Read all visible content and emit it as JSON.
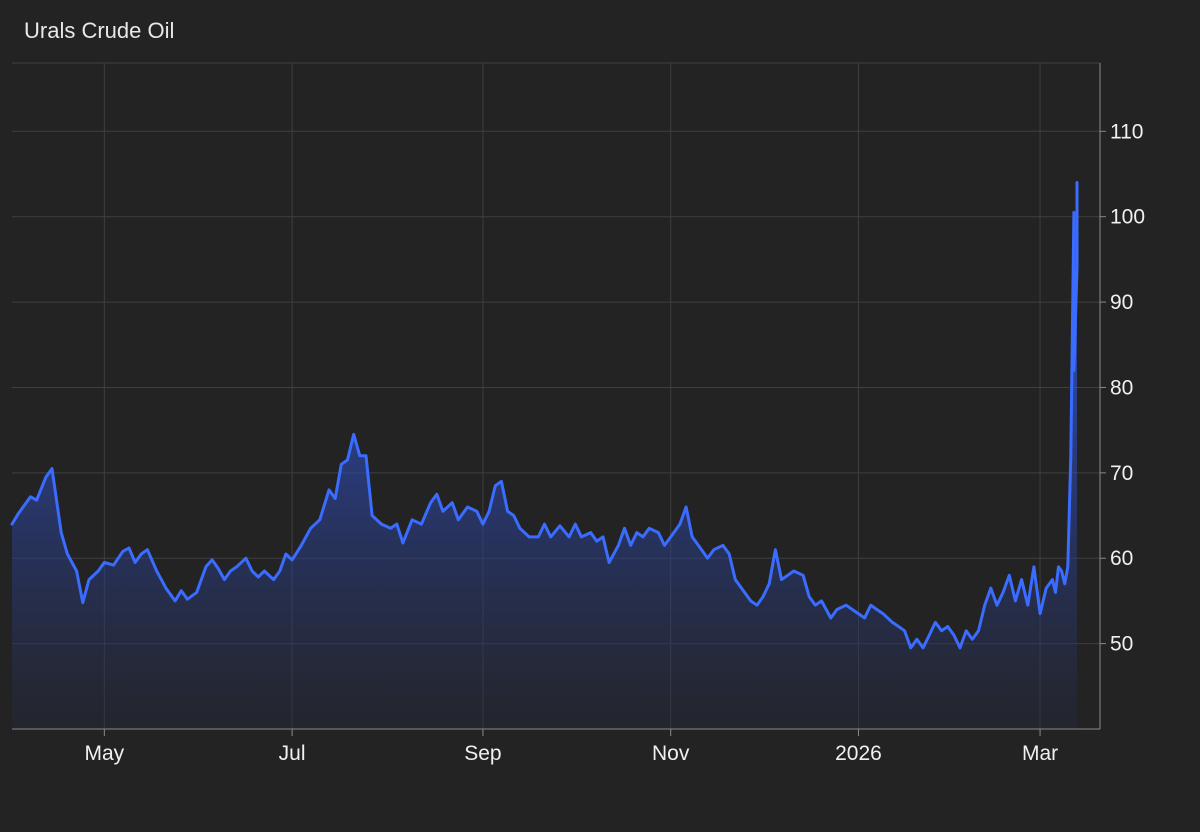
{
  "title": "Urals Crude Oil",
  "chart_data": {
    "type": "area",
    "title": "Urals Crude Oil",
    "xlabel": "",
    "ylabel": "",
    "x_range": [
      "2025-04-01",
      "2026-03-13"
    ],
    "ylim": [
      40,
      118
    ],
    "y_ticks": [
      50,
      60,
      70,
      80,
      90,
      100,
      110
    ],
    "x_ticks": [
      {
        "label": "May",
        "date": "2025-05-01"
      },
      {
        "label": "Jul",
        "date": "2025-07-01"
      },
      {
        "label": "Sep",
        "date": "2025-09-01"
      },
      {
        "label": "Nov",
        "date": "2025-11-01"
      },
      {
        "label": "2026",
        "date": "2026-01-01"
      },
      {
        "label": "Mar",
        "date": "2026-03-01"
      }
    ],
    "y_axis_position": "right",
    "grid": true,
    "color": "#3a6cff",
    "series": [
      {
        "points": [
          [
            "2025-04-01",
            64.0
          ],
          [
            "2025-04-03",
            65.2
          ],
          [
            "2025-04-07",
            67.2
          ],
          [
            "2025-04-09",
            66.8
          ],
          [
            "2025-04-12",
            69.5
          ],
          [
            "2025-04-14",
            70.5
          ],
          [
            "2025-04-17",
            63.0
          ],
          [
            "2025-04-19",
            60.5
          ],
          [
            "2025-04-22",
            58.5
          ],
          [
            "2025-04-24",
            54.8
          ],
          [
            "2025-04-26",
            57.5
          ],
          [
            "2025-04-29",
            58.5
          ],
          [
            "2025-05-01",
            59.5
          ],
          [
            "2025-05-04",
            59.2
          ],
          [
            "2025-05-07",
            60.8
          ],
          [
            "2025-05-09",
            61.2
          ],
          [
            "2025-05-11",
            59.5
          ],
          [
            "2025-05-13",
            60.5
          ],
          [
            "2025-05-15",
            61.0
          ],
          [
            "2025-05-18",
            58.5
          ],
          [
            "2025-05-21",
            56.5
          ],
          [
            "2025-05-24",
            55.0
          ],
          [
            "2025-05-26",
            56.2
          ],
          [
            "2025-05-28",
            55.2
          ],
          [
            "2025-05-31",
            56.0
          ],
          [
            "2025-06-03",
            59.0
          ],
          [
            "2025-06-05",
            59.8
          ],
          [
            "2025-06-07",
            58.8
          ],
          [
            "2025-06-09",
            57.5
          ],
          [
            "2025-06-11",
            58.5
          ],
          [
            "2025-06-13",
            59.0
          ],
          [
            "2025-06-16",
            60.0
          ],
          [
            "2025-06-18",
            58.5
          ],
          [
            "2025-06-20",
            57.8
          ],
          [
            "2025-06-22",
            58.5
          ],
          [
            "2025-06-25",
            57.5
          ],
          [
            "2025-06-27",
            58.5
          ],
          [
            "2025-06-29",
            60.5
          ],
          [
            "2025-07-01",
            59.8
          ],
          [
            "2025-07-04",
            61.5
          ],
          [
            "2025-07-07",
            63.5
          ],
          [
            "2025-07-10",
            64.5
          ],
          [
            "2025-07-13",
            68.0
          ],
          [
            "2025-07-15",
            67.0
          ],
          [
            "2025-07-17",
            71.0
          ],
          [
            "2025-07-19",
            71.5
          ],
          [
            "2025-07-21",
            74.5
          ],
          [
            "2025-07-23",
            72.0
          ],
          [
            "2025-07-25",
            72.0
          ],
          [
            "2025-07-27",
            65.0
          ],
          [
            "2025-07-30",
            64.0
          ],
          [
            "2025-08-02",
            63.5
          ],
          [
            "2025-08-04",
            64.0
          ],
          [
            "2025-08-06",
            61.8
          ],
          [
            "2025-08-09",
            64.5
          ],
          [
            "2025-08-12",
            64.0
          ],
          [
            "2025-08-15",
            66.5
          ],
          [
            "2025-08-17",
            67.5
          ],
          [
            "2025-08-19",
            65.5
          ],
          [
            "2025-08-22",
            66.5
          ],
          [
            "2025-08-24",
            64.5
          ],
          [
            "2025-08-27",
            66.0
          ],
          [
            "2025-08-30",
            65.5
          ],
          [
            "2025-09-01",
            64.0
          ],
          [
            "2025-09-03",
            65.5
          ],
          [
            "2025-09-05",
            68.5
          ],
          [
            "2025-09-07",
            69.0
          ],
          [
            "2025-09-09",
            65.5
          ],
          [
            "2025-09-11",
            65.0
          ],
          [
            "2025-09-13",
            63.5
          ],
          [
            "2025-09-16",
            62.5
          ],
          [
            "2025-09-19",
            62.5
          ],
          [
            "2025-09-21",
            64.0
          ],
          [
            "2025-09-23",
            62.5
          ],
          [
            "2025-09-26",
            63.8
          ],
          [
            "2025-09-29",
            62.5
          ],
          [
            "2025-10-01",
            64.0
          ],
          [
            "2025-10-03",
            62.5
          ],
          [
            "2025-10-06",
            63.0
          ],
          [
            "2025-10-08",
            62.0
          ],
          [
            "2025-10-10",
            62.5
          ],
          [
            "2025-10-12",
            59.5
          ],
          [
            "2025-10-15",
            61.5
          ],
          [
            "2025-10-17",
            63.5
          ],
          [
            "2025-10-19",
            61.5
          ],
          [
            "2025-10-21",
            63.0
          ],
          [
            "2025-10-23",
            62.5
          ],
          [
            "2025-10-25",
            63.5
          ],
          [
            "2025-10-28",
            63.0
          ],
          [
            "2025-10-30",
            61.5
          ],
          [
            "2025-11-02",
            63.0
          ],
          [
            "2025-11-04",
            64.0
          ],
          [
            "2025-11-06",
            66.0
          ],
          [
            "2025-11-08",
            62.5
          ],
          [
            "2025-11-10",
            61.5
          ],
          [
            "2025-11-13",
            60.0
          ],
          [
            "2025-11-15",
            61.0
          ],
          [
            "2025-11-18",
            61.5
          ],
          [
            "2025-11-20",
            60.5
          ],
          [
            "2025-11-22",
            57.5
          ],
          [
            "2025-11-24",
            56.5
          ],
          [
            "2025-11-27",
            55.0
          ],
          [
            "2025-11-29",
            54.5
          ],
          [
            "2025-12-01",
            55.5
          ],
          [
            "2025-12-03",
            57.0
          ],
          [
            "2025-12-05",
            61.0
          ],
          [
            "2025-12-07",
            57.5
          ],
          [
            "2025-12-09",
            58.0
          ],
          [
            "2025-12-11",
            58.5
          ],
          [
            "2025-12-14",
            58.0
          ],
          [
            "2025-12-16",
            55.5
          ],
          [
            "2025-12-18",
            54.5
          ],
          [
            "2025-12-20",
            55.0
          ],
          [
            "2025-12-23",
            53.0
          ],
          [
            "2025-12-25",
            54.0
          ],
          [
            "2025-12-28",
            54.5
          ],
          [
            "2025-12-30",
            54.0
          ],
          [
            "2026-01-01",
            53.5
          ],
          [
            "2026-01-03",
            53.0
          ],
          [
            "2026-01-05",
            54.5
          ],
          [
            "2026-01-07",
            54.0
          ],
          [
            "2026-01-09",
            53.5
          ],
          [
            "2026-01-12",
            52.5
          ],
          [
            "2026-01-14",
            52.0
          ],
          [
            "2026-01-16",
            51.5
          ],
          [
            "2026-01-18",
            49.5
          ],
          [
            "2026-01-20",
            50.5
          ],
          [
            "2026-01-22",
            49.5
          ],
          [
            "2026-01-24",
            51.0
          ],
          [
            "2026-01-26",
            52.5
          ],
          [
            "2026-01-28",
            51.5
          ],
          [
            "2026-01-30",
            52.0
          ],
          [
            "2026-02-01",
            51.0
          ],
          [
            "2026-02-03",
            49.5
          ],
          [
            "2026-02-05",
            51.5
          ],
          [
            "2026-02-07",
            50.5
          ],
          [
            "2026-02-09",
            51.5
          ],
          [
            "2026-02-11",
            54.5
          ],
          [
            "2026-02-13",
            56.5
          ],
          [
            "2026-02-15",
            54.5
          ],
          [
            "2026-02-17",
            56.0
          ],
          [
            "2026-02-19",
            58.0
          ],
          [
            "2026-02-21",
            55.0
          ],
          [
            "2026-02-23",
            57.5
          ],
          [
            "2026-02-25",
            54.5
          ],
          [
            "2026-02-27",
            59.0
          ],
          [
            "2026-03-01",
            53.5
          ],
          [
            "2026-03-03",
            56.5
          ],
          [
            "2026-03-05",
            57.5
          ],
          [
            "2026-03-06",
            56.0
          ],
          [
            "2026-03-07",
            59.0
          ],
          [
            "2026-03-08",
            58.5
          ],
          [
            "2026-03-09",
            57.0
          ],
          [
            "2026-03-10",
            59.0
          ],
          [
            "2026-03-11",
            72.0
          ],
          [
            "2026-03-12",
            100.5
          ],
          [
            "2026-03-12",
            82.0
          ],
          [
            "2026-03-13",
            94.0
          ],
          [
            "2026-03-13",
            104.0
          ]
        ]
      }
    ]
  }
}
